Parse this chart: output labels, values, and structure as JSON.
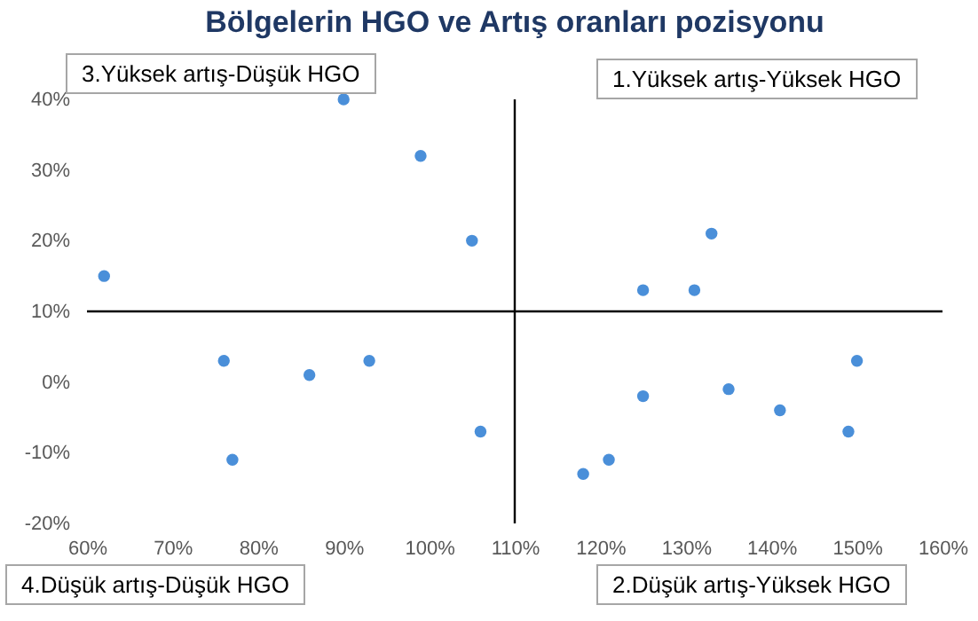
{
  "chart_data": {
    "type": "scatter",
    "title": "Bölgelerin HGO ve Artış oranları pozisyonu",
    "x": [
      62,
      76,
      77,
      86,
      93,
      90,
      99,
      105,
      106,
      133,
      125,
      131,
      150,
      125,
      135,
      141,
      149,
      118,
      121
    ],
    "series": [
      {
        "color": "#4a8fd9",
        "values": [
          15,
          3,
          -11,
          1,
          3,
          40,
          32,
          20,
          -7,
          21,
          13,
          13,
          3,
          -2,
          -1,
          -4,
          -7,
          -13,
          -11
        ]
      }
    ],
    "xlim": [
      60,
      160
    ],
    "xticks": [
      {
        "value": 60,
        "label": "60%"
      },
      {
        "value": 70,
        "label": "70%"
      },
      {
        "value": 80,
        "label": "80%"
      },
      {
        "value": 90,
        "label": "90%"
      },
      {
        "value": 100,
        "label": "100%"
      },
      {
        "value": 110,
        "label": "110%"
      },
      {
        "value": 120,
        "label": "120%"
      },
      {
        "value": 130,
        "label": "130%"
      },
      {
        "value": 140,
        "label": "140%"
      },
      {
        "value": 150,
        "label": "150%"
      },
      {
        "value": 160,
        "label": "160%"
      }
    ],
    "ylim": [
      -20,
      40
    ],
    "yticks": [
      {
        "value": -20,
        "label": "-20%"
      },
      {
        "value": -10,
        "label": "-10%"
      },
      {
        "value": 0,
        "label": "0%"
      },
      {
        "value": 10,
        "label": "10%"
      },
      {
        "value": 20,
        "label": "20%"
      },
      {
        "value": 30,
        "label": "30%"
      },
      {
        "value": 40,
        "label": "40%"
      }
    ],
    "ref_lines": [
      {
        "axis": "x",
        "value": 110,
        "color": "#000000"
      },
      {
        "axis": "y",
        "value": 10,
        "color": "#000000"
      }
    ],
    "annotations": [
      "1.Yüksek artış-Yüksek HGO",
      "2.Düşük artış-Yüksek HGO",
      "3.Yüksek artış-Düşük HGO",
      "4.Düşük artış-Düşük HGO"
    ],
    "marker": "circle",
    "grid": false
  }
}
